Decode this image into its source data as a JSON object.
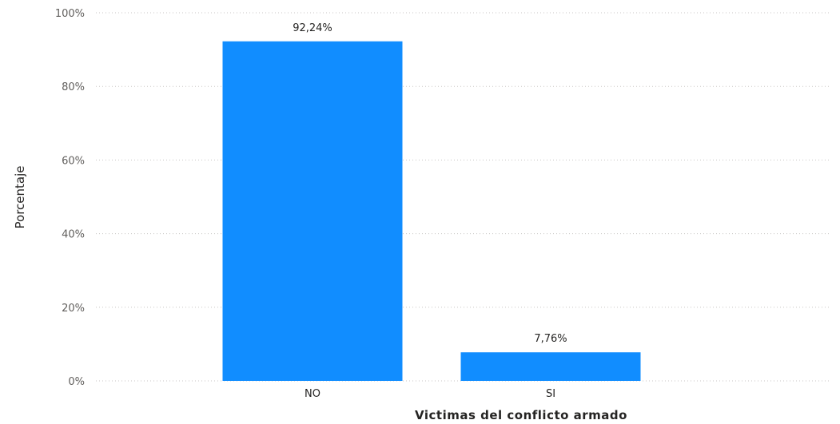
{
  "chart_data": {
    "type": "bar",
    "categories": [
      "NO",
      "SI"
    ],
    "values": [
      92.24,
      7.76
    ],
    "value_labels": [
      "92,24%",
      "7,76%"
    ],
    "ylim": [
      0,
      100
    ],
    "yticks": [
      0,
      20,
      40,
      60,
      80,
      100
    ],
    "ytick_labels": [
      "0%",
      "20%",
      "40%",
      "60%",
      "80%",
      "100%"
    ],
    "xlabel": "Victimas del conflicto armado",
    "ylabel": "Porcentaje",
    "grid": true,
    "bar_color": "#118DFF"
  }
}
